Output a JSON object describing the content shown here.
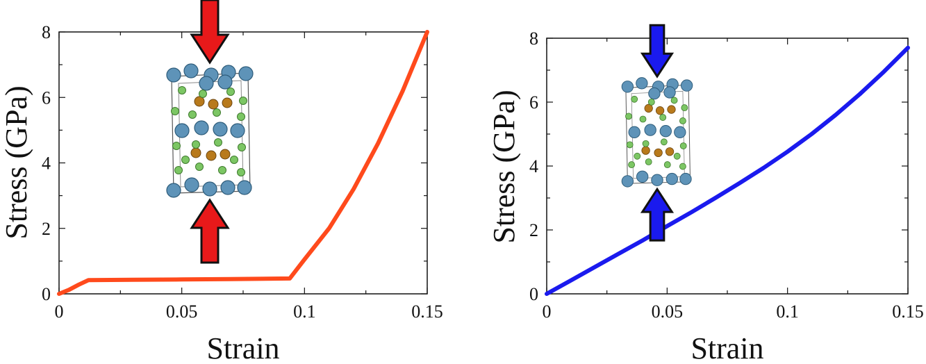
{
  "chart_data": [
    {
      "type": "line",
      "xlabel": "Strain",
      "ylabel": "Stress (GPa)",
      "xlim": [
        0,
        0.15
      ],
      "ylim": [
        0,
        8
      ],
      "xticks": [
        "0",
        "0.05",
        "0.1",
        "0.15"
      ],
      "yticks": [
        "0",
        "2",
        "4",
        "6",
        "8"
      ],
      "grid": false,
      "series": [
        {
          "color": "#ff4a1c",
          "x": [
            0,
            0.004,
            0.008,
            0.012,
            0.03,
            0.05,
            0.07,
            0.094,
            0.1,
            0.11,
            0.12,
            0.13,
            0.14,
            0.15
          ],
          "y": [
            0,
            0.12,
            0.28,
            0.42,
            0.43,
            0.44,
            0.45,
            0.47,
            1.05,
            2.0,
            3.2,
            4.6,
            6.2,
            8.0
          ]
        }
      ],
      "inset": {
        "arrow_color": "#e8191a",
        "description_icon": "crystal-structure-icon"
      }
    },
    {
      "type": "line",
      "xlabel": "Strain",
      "ylabel": "Stress (GPa)",
      "xlim": [
        0,
        0.15
      ],
      "ylim": [
        0,
        8
      ],
      "xticks": [
        "0",
        "0.05",
        "0.1",
        "0.15"
      ],
      "yticks": [
        "0",
        "2",
        "4",
        "6",
        "8"
      ],
      "grid": false,
      "series": [
        {
          "color": "#1a1aee",
          "x": [
            0,
            0.01,
            0.02,
            0.03,
            0.04,
            0.05,
            0.06,
            0.07,
            0.08,
            0.09,
            0.1,
            0.11,
            0.12,
            0.13,
            0.14,
            0.15
          ],
          "y": [
            0,
            0.42,
            0.84,
            1.26,
            1.68,
            2.12,
            2.55,
            3.0,
            3.46,
            3.94,
            4.45,
            5.0,
            5.6,
            6.25,
            6.95,
            7.7
          ]
        }
      ],
      "inset": {
        "arrow_color": "#1a1aee",
        "description_icon": "crystal-structure-icon"
      }
    }
  ]
}
